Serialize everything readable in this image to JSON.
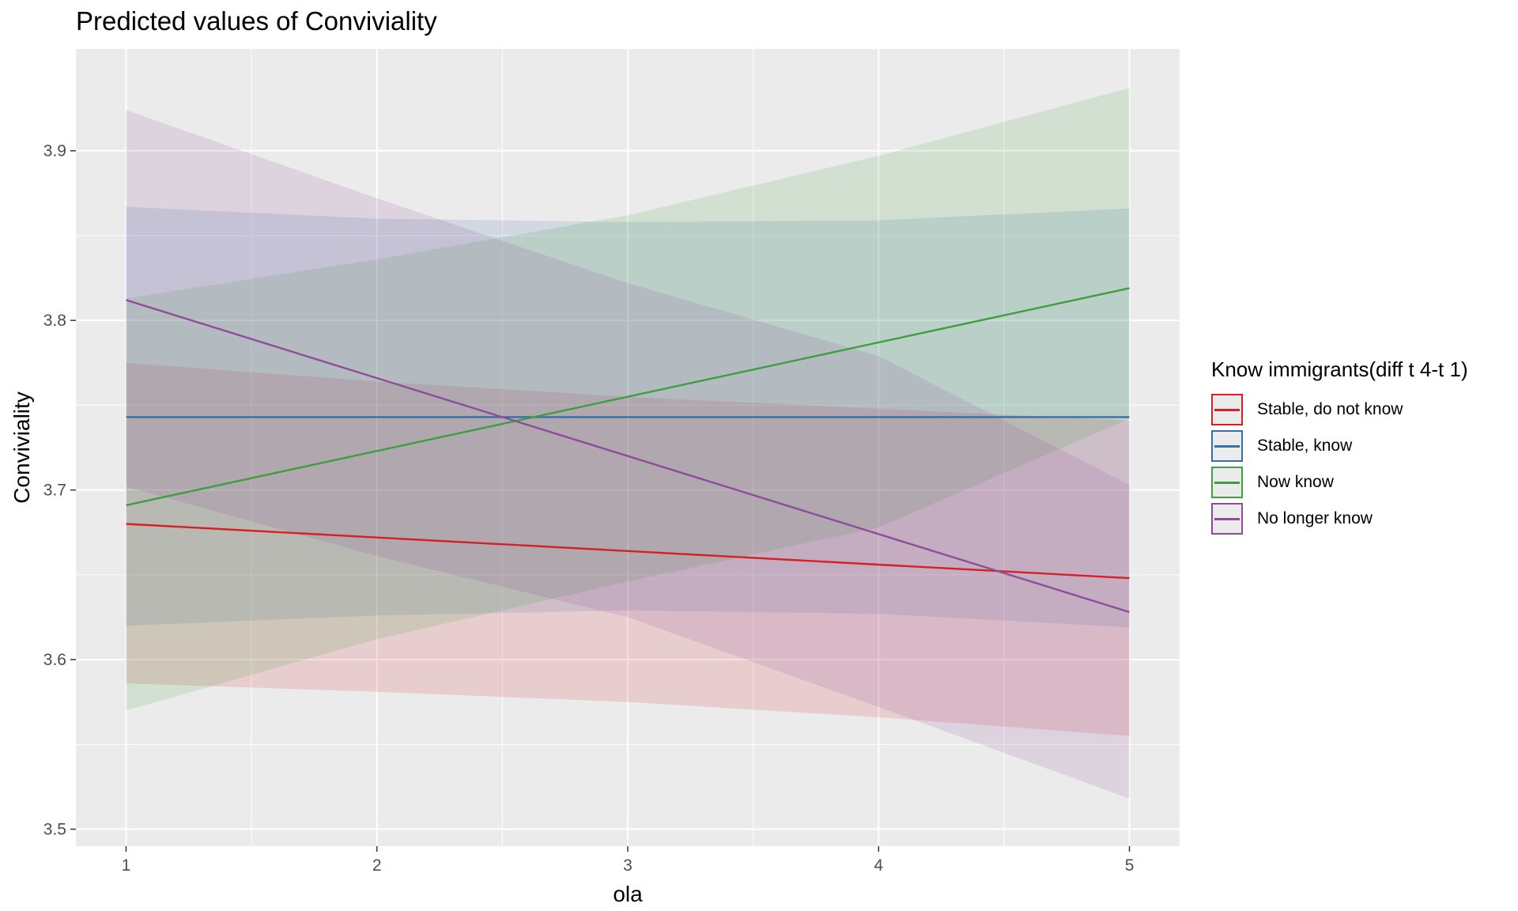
{
  "title": "Predicted values of Conviviality",
  "chart_data": {
    "type": "line",
    "title": "Predicted values of Conviviality",
    "xlabel": "ola",
    "ylabel": "Conviviality",
    "xlim": [
      0.8,
      5.2
    ],
    "ylim": [
      3.49,
      3.96
    ],
    "x_ticks": [
      1,
      2,
      3,
      4,
      5
    ],
    "x_tick_labels": [
      "1",
      "2",
      "3",
      "4",
      "5"
    ],
    "y_ticks": [
      3.5,
      3.6,
      3.7,
      3.8,
      3.9
    ],
    "y_tick_labels": [
      "3.5",
      "3.6",
      "3.7",
      "3.8",
      "3.9"
    ],
    "grid": true,
    "legend_title": "Know immigrants(diff t 4-t 1)",
    "legend_position": "right",
    "series": [
      {
        "name": "Stable, do not know",
        "color": "#d62027",
        "x": [
          1,
          2,
          3,
          4,
          5
        ],
        "values": [
          3.68,
          3.672,
          3.664,
          3.656,
          3.648
        ],
        "ci_low": [
          3.586,
          3.581,
          3.575,
          3.566,
          3.555
        ],
        "ci_high": [
          3.775,
          3.764,
          3.755,
          3.748,
          3.741
        ]
      },
      {
        "name": "Stable, know",
        "color": "#3a6ea5",
        "x": [
          1,
          2,
          3,
          4,
          5
        ],
        "values": [
          3.743,
          3.743,
          3.743,
          3.743,
          3.743
        ],
        "ci_low": [
          3.62,
          3.626,
          3.629,
          3.627,
          3.619
        ],
        "ci_high": [
          3.867,
          3.86,
          3.858,
          3.859,
          3.866
        ]
      },
      {
        "name": "Now know",
        "color": "#3f9e3f",
        "x": [
          1,
          2,
          3,
          4,
          5
        ],
        "values": [
          3.691,
          3.723,
          3.755,
          3.787,
          3.819
        ],
        "ci_low": [
          3.57,
          3.612,
          3.646,
          3.678,
          3.742
        ],
        "ci_high": [
          3.813,
          3.836,
          3.862,
          3.897,
          3.937
        ]
      },
      {
        "name": "No longer know",
        "color": "#8e4c9b",
        "x": [
          1,
          2,
          3,
          4,
          5
        ],
        "values": [
          3.812,
          3.766,
          3.72,
          3.674,
          3.628
        ],
        "ci_low": [
          3.702,
          3.661,
          3.625,
          3.572,
          3.518
        ],
        "ci_high": [
          3.924,
          3.872,
          3.822,
          3.779,
          3.703
        ]
      }
    ]
  }
}
